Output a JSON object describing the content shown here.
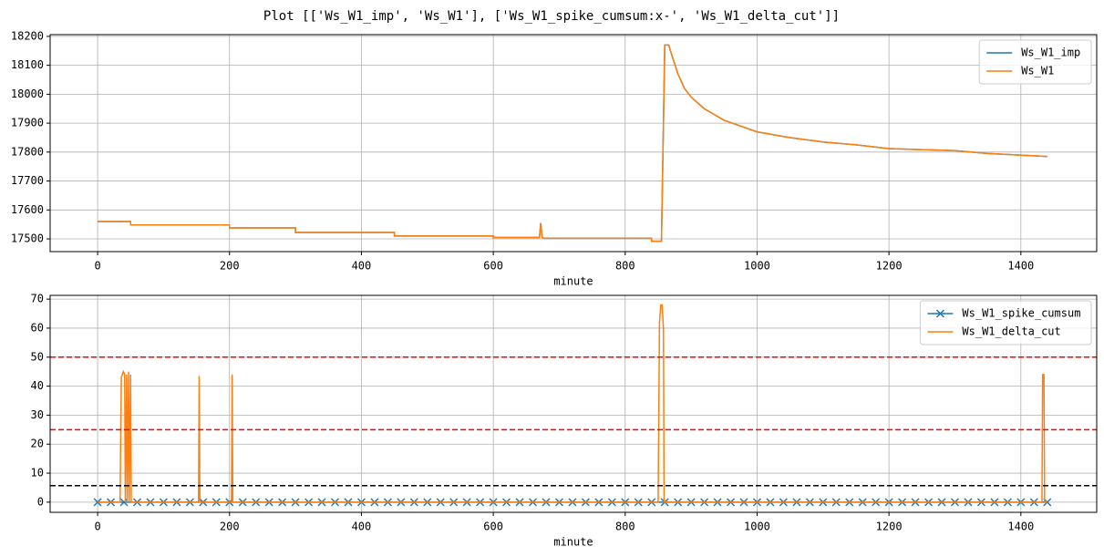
{
  "title": "Plot [['Ws_W1_imp', 'Ws_W1'], ['Ws_W1_spike_cumsum:x-', 'Ws_W1_delta_cut']]",
  "chart_data": [
    {
      "type": "line",
      "x_label": "minute",
      "x": [
        0,
        50,
        50,
        200,
        200,
        300,
        300,
        450,
        450,
        600,
        600,
        670,
        672,
        674,
        676,
        840,
        840,
        855,
        860,
        866,
        870,
        880,
        890,
        900,
        920,
        950,
        1000,
        1050,
        1100,
        1150,
        1200,
        1300,
        1350,
        1440
      ],
      "series": [
        {
          "name": "Ws_W1_imp",
          "color": "#1f77b4",
          "values": [
            17560,
            17560,
            17548,
            17548,
            17538,
            17538,
            17522,
            17522,
            17510,
            17510,
            17505,
            17505,
            17555,
            17505,
            17502,
            17502,
            17492,
            17492,
            18170,
            18170,
            18140,
            18070,
            18020,
            17990,
            17950,
            17910,
            17870,
            17850,
            17835,
            17825,
            17812,
            17805,
            17795,
            17785
          ]
        },
        {
          "name": "Ws_W1",
          "color": "#ff7f0e",
          "values": [
            17560,
            17560,
            17548,
            17548,
            17538,
            17538,
            17522,
            17522,
            17510,
            17510,
            17505,
            17505,
            17555,
            17505,
            17502,
            17502,
            17492,
            17492,
            18170,
            18170,
            18140,
            18070,
            18020,
            17990,
            17950,
            17910,
            17870,
            17850,
            17835,
            17825,
            17812,
            17805,
            17795,
            17785
          ]
        }
      ],
      "xlim": [
        -72,
        1515
      ],
      "xticks": [
        0,
        200,
        400,
        600,
        800,
        1000,
        1200,
        1400
      ],
      "ylim": [
        17456,
        18206
      ],
      "yticks": [
        17500,
        17600,
        17700,
        17800,
        17900,
        18000,
        18100,
        18200
      ],
      "grid": true,
      "legend": "upper right"
    },
    {
      "type": "line",
      "x_label": "minute",
      "series": [
        {
          "name": "Ws_W1_spike_cumsum",
          "color": "#1f77b4",
          "marker": "x",
          "x": [
            0,
            20,
            40,
            60,
            80,
            100,
            120,
            140,
            160,
            180,
            200,
            220,
            240,
            260,
            280,
            300,
            320,
            340,
            360,
            380,
            400,
            420,
            440,
            460,
            480,
            500,
            520,
            540,
            560,
            580,
            600,
            620,
            640,
            660,
            680,
            700,
            720,
            740,
            760,
            780,
            800,
            820,
            840,
            860,
            880,
            900,
            920,
            940,
            960,
            980,
            1000,
            1020,
            1040,
            1060,
            1080,
            1100,
            1120,
            1140,
            1160,
            1180,
            1200,
            1220,
            1240,
            1260,
            1280,
            1300,
            1320,
            1340,
            1360,
            1380,
            1400,
            1420,
            1440
          ],
          "values": [
            0,
            0,
            0,
            0,
            0,
            0,
            0,
            0,
            0,
            0,
            0,
            0,
            0,
            0,
            0,
            0,
            0,
            0,
            0,
            0,
            0,
            0,
            0,
            0,
            0,
            0,
            0,
            0,
            0,
            0,
            0,
            0,
            0,
            0,
            0,
            0,
            0,
            0,
            0,
            0,
            0,
            0,
            0,
            0,
            0,
            0,
            0,
            0,
            0,
            0,
            0,
            0,
            0,
            0,
            0,
            0,
            0,
            0,
            0,
            0,
            0,
            0,
            0,
            0,
            0,
            0,
            0,
            0,
            0,
            0,
            0,
            0,
            0
          ]
        },
        {
          "name": "Ws_W1_delta_cut",
          "color": "#ff7f0e",
          "x": [
            0,
            34,
            36,
            39,
            41,
            42,
            44,
            45,
            47,
            48,
            50,
            51,
            153,
            154,
            155,
            203,
            204,
            205,
            850,
            852,
            854,
            856,
            858,
            859,
            1432,
            1433,
            1435,
            1436,
            1440
          ],
          "values": [
            0,
            0,
            43,
            45,
            44,
            0,
            44,
            0,
            45,
            0,
            44,
            0,
            0,
            43.5,
            0,
            0,
            44,
            0,
            0,
            62,
            68,
            68,
            60,
            0,
            0,
            44,
            44,
            0,
            0
          ]
        }
      ],
      "hlines": [
        {
          "y": 50,
          "color": "#ff0000"
        },
        {
          "y": 25,
          "color": "#ff0000"
        },
        {
          "y": 5.7,
          "color": "#000000"
        }
      ],
      "xlim": [
        -72,
        1515
      ],
      "xticks": [
        0,
        200,
        400,
        600,
        800,
        1000,
        1200,
        1400
      ],
      "ylim": [
        -3.5,
        71.3
      ],
      "yticks": [
        0,
        10,
        20,
        30,
        40,
        50,
        60,
        70
      ],
      "grid": true,
      "legend": "upper right"
    }
  ]
}
